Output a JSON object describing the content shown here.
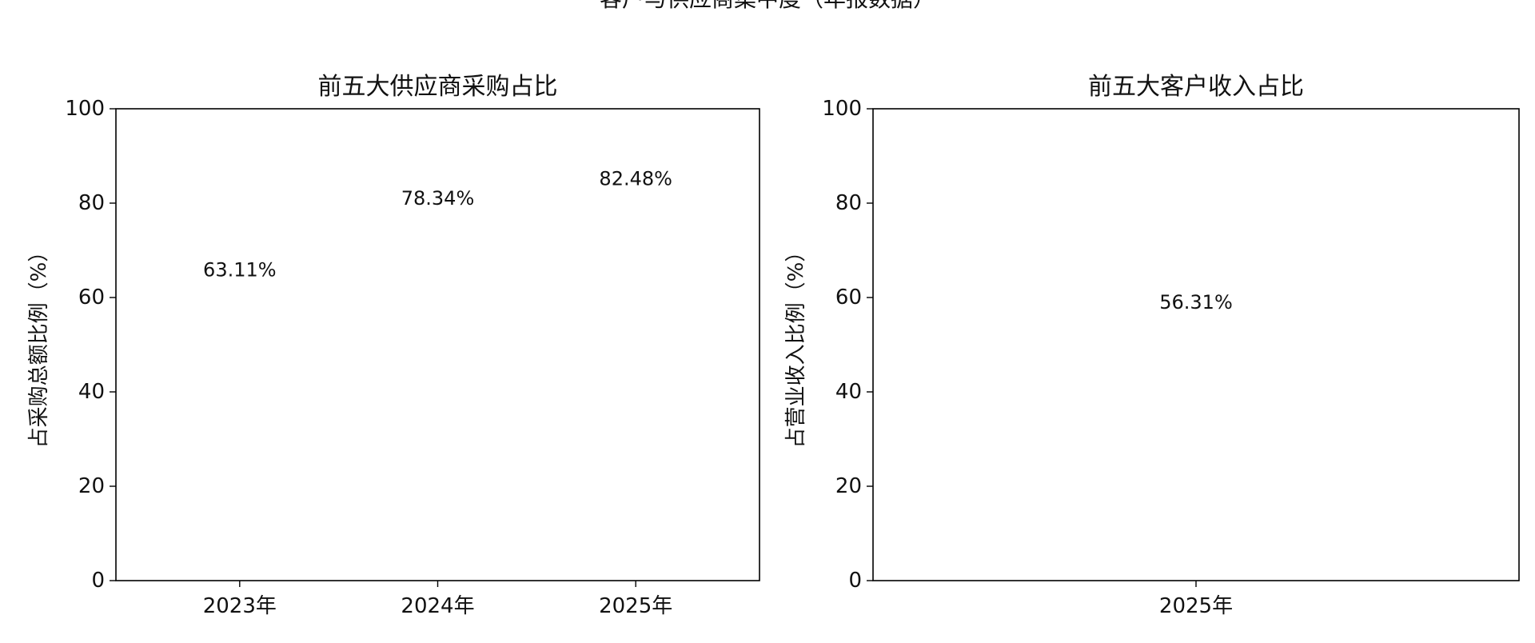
{
  "figure": {
    "suptitle": "客户与供应商集中度（年报数据）"
  },
  "chart_data": [
    {
      "type": "bar",
      "title": "前五大供应商采购占比",
      "xlabel": "",
      "ylabel": "占采购总额比例（%）",
      "categories": [
        "2023年",
        "2024年",
        "2025年"
      ],
      "values": [
        63.11,
        78.34,
        82.48
      ],
      "value_labels": [
        "63.11%",
        "78.34%",
        "82.48%"
      ],
      "ylim": [
        0,
        100
      ],
      "yticks": [
        0,
        20,
        40,
        60,
        80,
        100
      ],
      "color": "#2E5FA2",
      "grid": false,
      "legend": "none"
    },
    {
      "type": "bar",
      "title": "前五大客户收入占比",
      "xlabel": "",
      "ylabel": "占营业收入比例（%）",
      "categories": [
        "2025年"
      ],
      "values": [
        56.31
      ],
      "value_labels": [
        "56.31%"
      ],
      "ylim": [
        0,
        100
      ],
      "yticks": [
        0,
        20,
        40,
        60,
        80,
        100
      ],
      "color": "#C0392B",
      "grid": false,
      "legend": "none"
    }
  ]
}
